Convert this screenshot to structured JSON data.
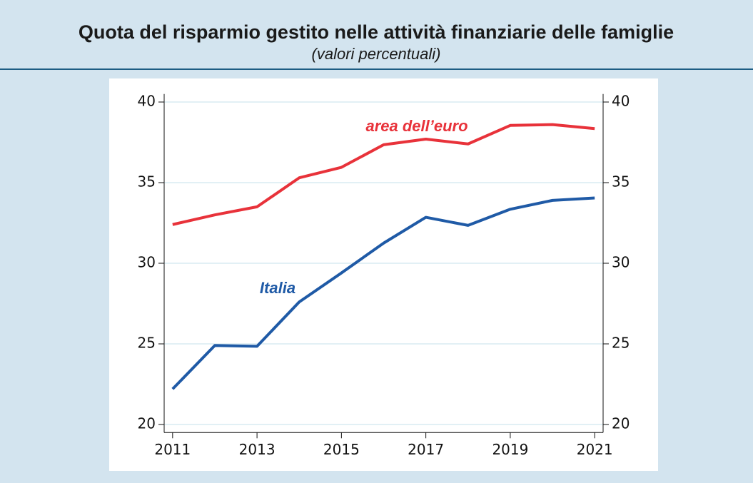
{
  "chart_data": {
    "type": "line",
    "title": "Quota del risparmio gestito nelle attività finanziarie delle famiglie",
    "subtitle": "(valori percentuali)",
    "x": [
      2011,
      2012,
      2013,
      2014,
      2015,
      2016,
      2017,
      2018,
      2019,
      2020,
      2021
    ],
    "series": [
      {
        "name": "area dell’euro",
        "color": "#e8323a",
        "values": [
          32.4,
          33.0,
          33.5,
          35.3,
          35.95,
          37.35,
          37.7,
          37.4,
          38.55,
          38.6,
          38.35
        ]
      },
      {
        "name": "Italia",
        "color": "#1f5aa6",
        "values": [
          22.2,
          24.9,
          24.85,
          27.6,
          29.4,
          31.25,
          32.85,
          32.35,
          33.35,
          33.9,
          34.05
        ]
      }
    ],
    "xlim": [
      2010.8,
      2021.2
    ],
    "xticks": [
      2011,
      2013,
      2015,
      2017,
      2019,
      2021
    ],
    "ylim": [
      19.5,
      40.5
    ],
    "yticks": [
      20,
      25,
      30,
      35,
      40
    ],
    "y2lim": [
      19.5,
      40.5
    ],
    "y2ticks": [
      20,
      25,
      30,
      35,
      40
    ],
    "grid": true
  }
}
